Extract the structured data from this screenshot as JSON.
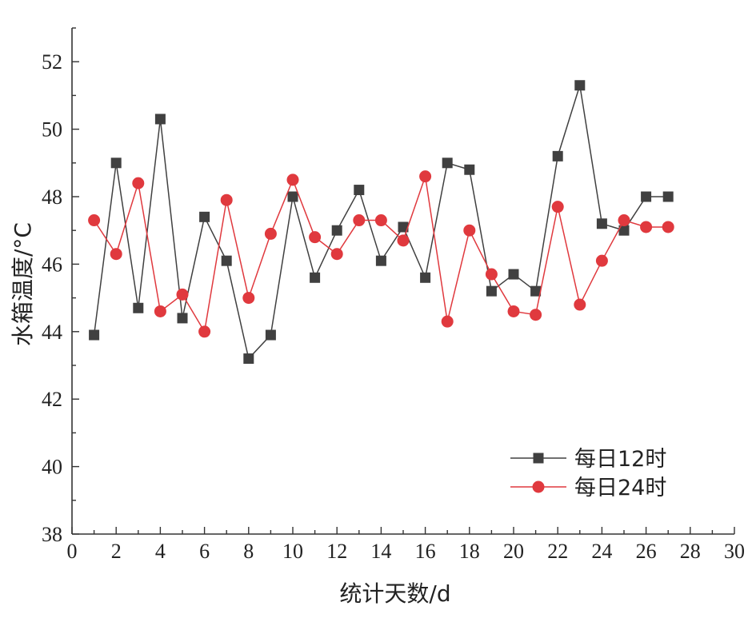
{
  "chart_data": {
    "type": "line",
    "xlabel": "统计天数/d",
    "ylabel": "水箱温度/°C",
    "xlim": [
      0,
      30
    ],
    "ylim": [
      38,
      53
    ],
    "xticks": [
      0,
      2,
      4,
      6,
      8,
      10,
      12,
      14,
      16,
      18,
      20,
      22,
      24,
      26,
      28,
      30
    ],
    "yticks": [
      38,
      40,
      42,
      44,
      46,
      48,
      50,
      52
    ],
    "grid": false,
    "legend_position": "bottom-right",
    "series": [
      {
        "name": "每日12时",
        "color": "#404040",
        "marker": "square",
        "x": [
          1,
          2,
          3,
          4,
          5,
          6,
          7,
          8,
          9,
          10,
          11,
          12,
          13,
          14,
          15,
          16,
          17,
          18,
          19,
          20,
          21,
          22,
          23,
          24,
          25,
          26,
          27
        ],
        "y": [
          43.9,
          49.0,
          44.7,
          50.3,
          44.4,
          47.4,
          46.1,
          43.2,
          43.9,
          48.0,
          45.6,
          47.0,
          48.2,
          46.1,
          47.1,
          45.6,
          49.0,
          48.8,
          45.2,
          45.7,
          45.2,
          49.2,
          51.3,
          47.2,
          47.0,
          48.0,
          48.0
        ]
      },
      {
        "name": "每日24时",
        "color": "#e0393e",
        "marker": "circle",
        "x": [
          1,
          2,
          3,
          4,
          5,
          6,
          7,
          8,
          9,
          10,
          11,
          12,
          13,
          14,
          15,
          16,
          17,
          18,
          19,
          20,
          21,
          22,
          23,
          24,
          25,
          26,
          27
        ],
        "y": [
          47.3,
          46.3,
          48.4,
          44.6,
          45.1,
          44.0,
          47.9,
          45.0,
          46.9,
          48.5,
          46.8,
          46.3,
          47.3,
          47.3,
          46.7,
          48.6,
          44.3,
          47.0,
          45.7,
          44.6,
          44.5,
          47.7,
          44.8,
          46.1,
          47.3,
          47.1,
          47.1
        ]
      }
    ]
  }
}
